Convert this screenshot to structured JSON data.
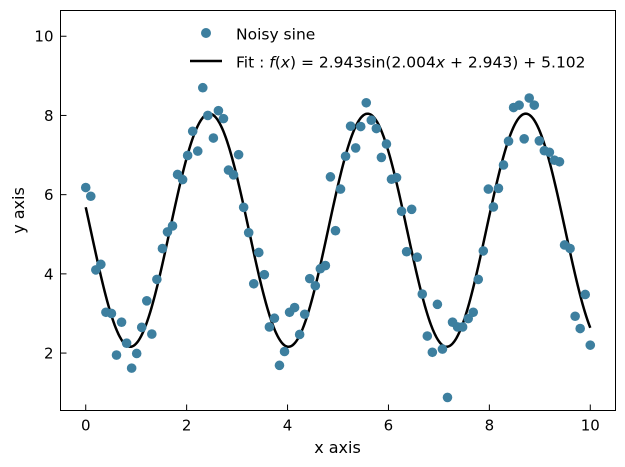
{
  "chart_data": {
    "type": "scatter",
    "xlabel": "x axis",
    "ylabel": "y axis",
    "xlim": [
      -0.5,
      10.5
    ],
    "ylim": [
      0.55,
      10.65
    ],
    "xticks": [
      0,
      2,
      4,
      6,
      8,
      10
    ],
    "yticks": [
      2,
      4,
      6,
      8,
      10
    ],
    "xtick_labels": [
      "0",
      "2",
      "4",
      "6",
      "8",
      "10"
    ],
    "ytick_labels": [
      "2",
      "4",
      "6",
      "8",
      "10"
    ],
    "grid": false,
    "legend_position": "top-center",
    "series": [
      {
        "name": "Noisy sine",
        "kind": "scatter",
        "color": "#3d7f9f",
        "points": [
          [
            0.0,
            6.18
          ],
          [
            0.1,
            5.96
          ],
          [
            0.2,
            4.1
          ],
          [
            0.3,
            4.24
          ],
          [
            0.4,
            3.03
          ],
          [
            0.51,
            3.0
          ],
          [
            0.61,
            1.95
          ],
          [
            0.71,
            2.78
          ],
          [
            0.81,
            2.25
          ],
          [
            0.91,
            1.62
          ],
          [
            1.01,
            1.99
          ],
          [
            1.11,
            2.65
          ],
          [
            1.21,
            3.32
          ],
          [
            1.31,
            2.48
          ],
          [
            1.41,
            3.86
          ],
          [
            1.52,
            4.64
          ],
          [
            1.62,
            5.06
          ],
          [
            1.72,
            5.21
          ],
          [
            1.82,
            6.51
          ],
          [
            1.92,
            6.38
          ],
          [
            2.02,
            6.99
          ],
          [
            2.12,
            7.6
          ],
          [
            2.22,
            7.1
          ],
          [
            2.32,
            8.7
          ],
          [
            2.42,
            8.0
          ],
          [
            2.53,
            7.43
          ],
          [
            2.63,
            8.12
          ],
          [
            2.73,
            7.92
          ],
          [
            2.83,
            6.62
          ],
          [
            2.93,
            6.5
          ],
          [
            3.03,
            7.01
          ],
          [
            3.13,
            5.68
          ],
          [
            3.23,
            5.04
          ],
          [
            3.33,
            3.75
          ],
          [
            3.43,
            4.54
          ],
          [
            3.54,
            3.98
          ],
          [
            3.64,
            2.66
          ],
          [
            3.74,
            2.88
          ],
          [
            3.84,
            1.69
          ],
          [
            3.94,
            2.04
          ],
          [
            4.04,
            3.03
          ],
          [
            4.14,
            3.15
          ],
          [
            4.24,
            2.47
          ],
          [
            4.34,
            2.98
          ],
          [
            4.44,
            3.88
          ],
          [
            4.55,
            3.7
          ],
          [
            4.65,
            4.13
          ],
          [
            4.75,
            4.21
          ],
          [
            4.85,
            6.45
          ],
          [
            4.95,
            5.09
          ],
          [
            5.05,
            6.14
          ],
          [
            5.15,
            6.97
          ],
          [
            5.25,
            7.73
          ],
          [
            5.35,
            7.18
          ],
          [
            5.45,
            7.72
          ],
          [
            5.56,
            8.32
          ],
          [
            5.66,
            7.88
          ],
          [
            5.76,
            7.67
          ],
          [
            5.86,
            6.94
          ],
          [
            5.96,
            7.28
          ],
          [
            6.06,
            6.39
          ],
          [
            6.16,
            6.43
          ],
          [
            6.26,
            5.58
          ],
          [
            6.36,
            4.56
          ],
          [
            6.46,
            5.63
          ],
          [
            6.57,
            4.42
          ],
          [
            6.67,
            3.49
          ],
          [
            6.77,
            2.43
          ],
          [
            6.87,
            2.02
          ],
          [
            6.97,
            3.23
          ],
          [
            7.07,
            2.1
          ],
          [
            7.17,
            0.88
          ],
          [
            7.27,
            2.78
          ],
          [
            7.37,
            2.66
          ],
          [
            7.47,
            2.66
          ],
          [
            7.58,
            2.87
          ],
          [
            7.68,
            3.03
          ],
          [
            7.78,
            3.86
          ],
          [
            7.88,
            4.58
          ],
          [
            7.98,
            6.14
          ],
          [
            8.08,
            5.69
          ],
          [
            8.18,
            6.16
          ],
          [
            8.28,
            6.75
          ],
          [
            8.38,
            7.35
          ],
          [
            8.48,
            8.2
          ],
          [
            8.59,
            8.26
          ],
          [
            8.69,
            7.41
          ],
          [
            8.79,
            8.44
          ],
          [
            8.89,
            8.26
          ],
          [
            8.99,
            7.36
          ],
          [
            9.09,
            7.11
          ],
          [
            9.19,
            7.07
          ],
          [
            9.29,
            6.87
          ],
          [
            9.39,
            6.83
          ],
          [
            9.49,
            4.73
          ],
          [
            9.6,
            4.64
          ],
          [
            9.7,
            2.93
          ],
          [
            9.8,
            2.62
          ],
          [
            9.9,
            3.48
          ],
          [
            10.0,
            2.2
          ]
        ]
      },
      {
        "name": "Fit : f(x) = 2.943sin(2.004x + 2.943) + 5.102",
        "kind": "line",
        "color": "#000000",
        "function": {
          "amplitude": 2.943,
          "frequency": 2.004,
          "phase": 2.943,
          "offset": 5.102
        },
        "x_range": [
          0,
          10
        ]
      }
    ],
    "legend": [
      {
        "label": "Noisy sine",
        "marker": "circle",
        "color": "#3d7f9f"
      },
      {
        "label_parts": [
          "Fit : ",
          "f",
          "(",
          "x",
          ") = 2.943sin(2.004",
          "x",
          " + 2.943) + 5.102"
        ],
        "marker": "line",
        "color": "#000000"
      }
    ]
  }
}
